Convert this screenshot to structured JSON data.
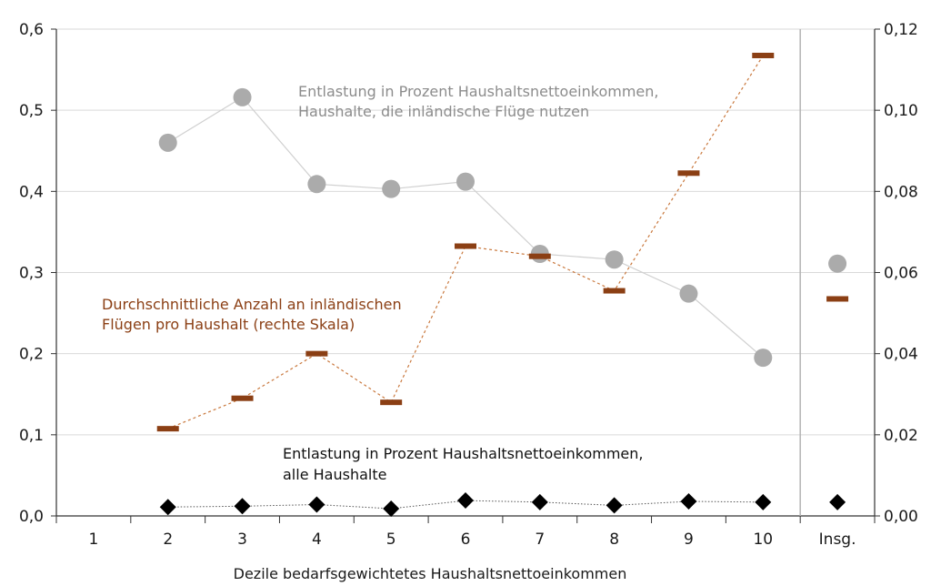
{
  "chart_data": {
    "type": "line",
    "xlabel": "Dezile bedarfsgewichtetes Haushaltsnettoeinkommen",
    "categories": [
      "1",
      "2",
      "3",
      "4",
      "5",
      "6",
      "7",
      "8",
      "9",
      "10",
      "Insg."
    ],
    "y_left": {
      "min": 0,
      "max": 0.6,
      "ticks": [
        "0,0",
        "0,1",
        "0,2",
        "0,3",
        "0,4",
        "0,5",
        "0,6"
      ]
    },
    "y_right": {
      "min": 0,
      "max": 0.12,
      "ticks": [
        "0,00",
        "0,02",
        "0,04",
        "0,06",
        "0,08",
        "0,10",
        "0,12"
      ]
    },
    "grid": true,
    "separator_before": "Insg.",
    "colors": {
      "grey_series": "#ababab",
      "brown_series": "#8b3f14",
      "black_series": "#000000",
      "grid": "#d9d9d9",
      "axis": "#333333"
    },
    "series": [
      {
        "key": "flight_users",
        "axis": "left",
        "values": [
          null,
          0.46,
          0.516,
          0.409,
          0.403,
          0.412,
          0.323,
          0.316,
          0.274,
          0.195,
          0.311
        ]
      },
      {
        "key": "flights_per_household",
        "axis": "right",
        "values": [
          null,
          0.0215,
          0.029,
          0.04,
          0.028,
          0.0665,
          0.064,
          0.0555,
          0.0845,
          0.1135,
          0.0535
        ]
      },
      {
        "key": "all_households",
        "axis": "left",
        "values": [
          null,
          0.011,
          0.012,
          0.014,
          0.009,
          0.019,
          0.017,
          0.013,
          0.018,
          0.017,
          0.017
        ]
      }
    ],
    "annotations": {
      "grey": [
        "Entlastung in Prozent Haushaltsnettoeinkommen,",
        "Haushalte, die inländische Flüge nutzen"
      ],
      "brown": [
        "Durchschnittliche Anzahl an inländischen",
        "Flügen pro Haushalt (rechte Skala)"
      ],
      "black": [
        "Entlastung in Prozent Haushaltsnettoeinkommen,",
        "alle Haushalte"
      ]
    }
  }
}
